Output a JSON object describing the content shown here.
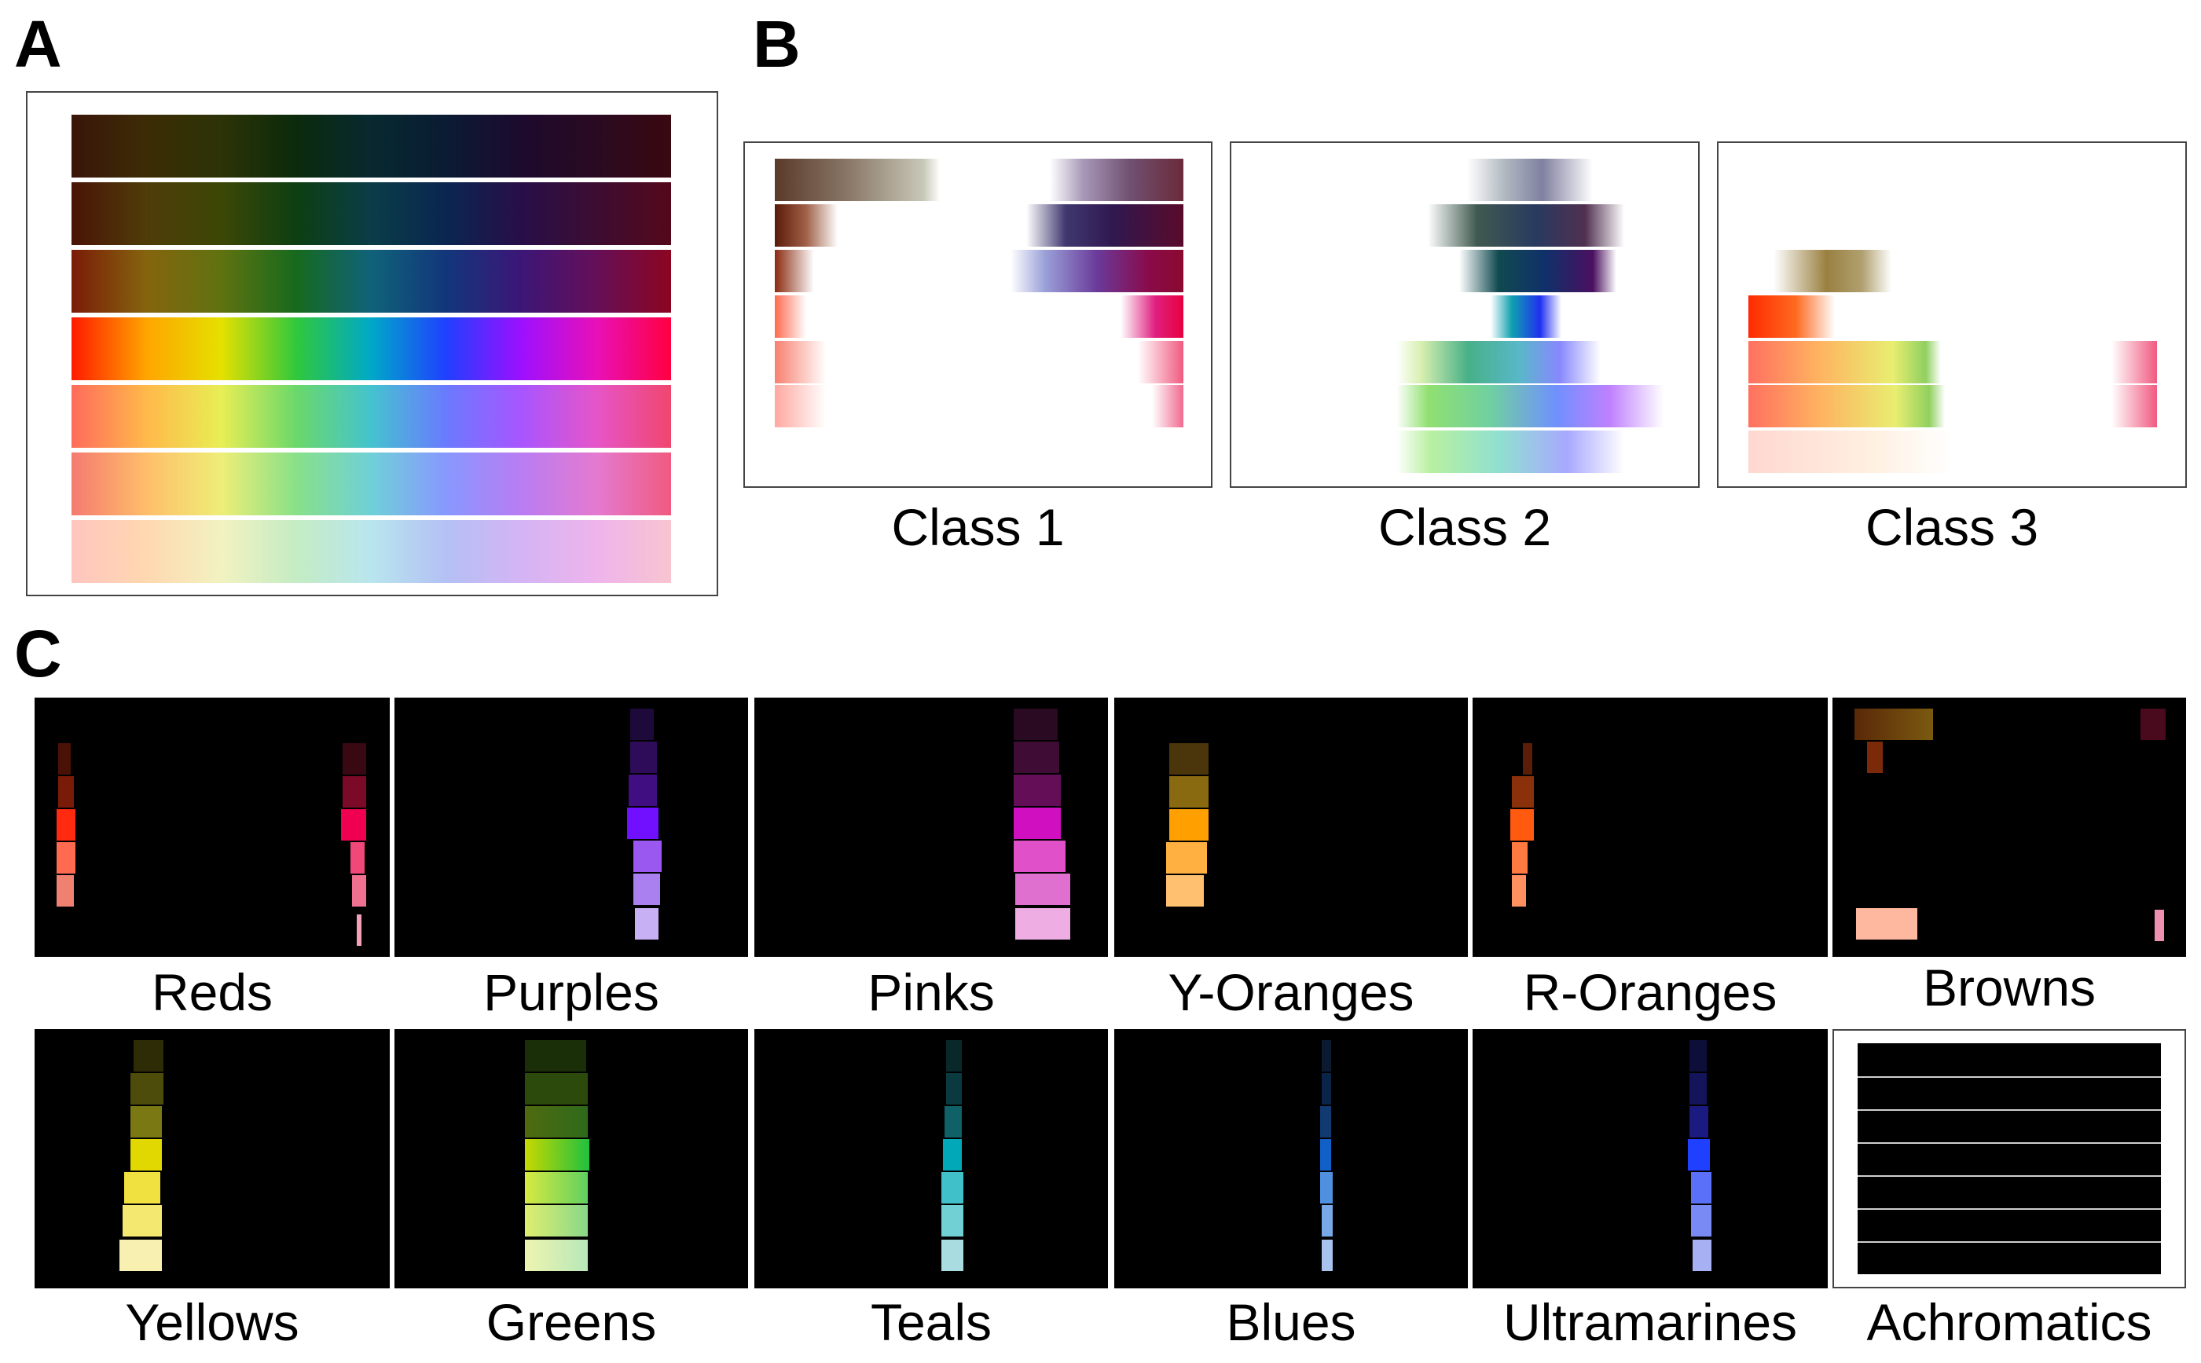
{
  "panels": {
    "a": {
      "letter": "A"
    },
    "b": {
      "letter": "B",
      "classes": [
        "Class 1",
        "Class 2",
        "Class 3"
      ]
    },
    "c": {
      "letter": "C",
      "row1": [
        "Reds",
        "Purples",
        "Pinks",
        "Y-Oranges",
        "R-Oranges",
        "Browns"
      ],
      "row2": [
        "Yellows",
        "Greens",
        "Teals",
        "Blues",
        "Ultramarines",
        "Achromatics"
      ]
    }
  },
  "colors": {
    "hue_rows": [
      [
        "#3a1508",
        "#3c2c06",
        "#2c3306",
        "#0b2a0c",
        "#082930",
        "#0a1b33",
        "#1d0a2e",
        "#2a0a21",
        "#3a0810"
      ],
      [
        "#4a1407",
        "#4f3c08",
        "#3c4706",
        "#0d3f12",
        "#0a3d48",
        "#0a2650",
        "#280e48",
        "#3c0d32",
        "#55081a"
      ],
      [
        "#7a1c07",
        "#85640e",
        "#607210",
        "#166a1e",
        "#10627a",
        "#12367a",
        "#3c1677",
        "#650f58",
        "#8c0520"
      ],
      [
        "#ff1a00",
        "#ffa500",
        "#e5e000",
        "#30c83c",
        "#00a8c8",
        "#2040ff",
        "#9c10ff",
        "#e810b8",
        "#ff0040"
      ],
      [
        "#ff6b5c",
        "#ffb94a",
        "#e8ee55",
        "#6ad86a",
        "#44c3cf",
        "#6a7aff",
        "#a855ff",
        "#e655c8",
        "#f0466e"
      ],
      [
        "#f47a70",
        "#ffbe6a",
        "#eeee77",
        "#88e088",
        "#6fd0d8",
        "#8898ff",
        "#b97cf2",
        "#e47ad0",
        "#f05a80"
      ],
      [
        "#ffc5c0",
        "#ffd8b0",
        "#f2f2c0",
        "#c4ecc4",
        "#b8e6ee",
        "#b4c0f4",
        "#d4b4f4",
        "#eeb4ec",
        "#f8c4d0"
      ]
    ]
  }
}
